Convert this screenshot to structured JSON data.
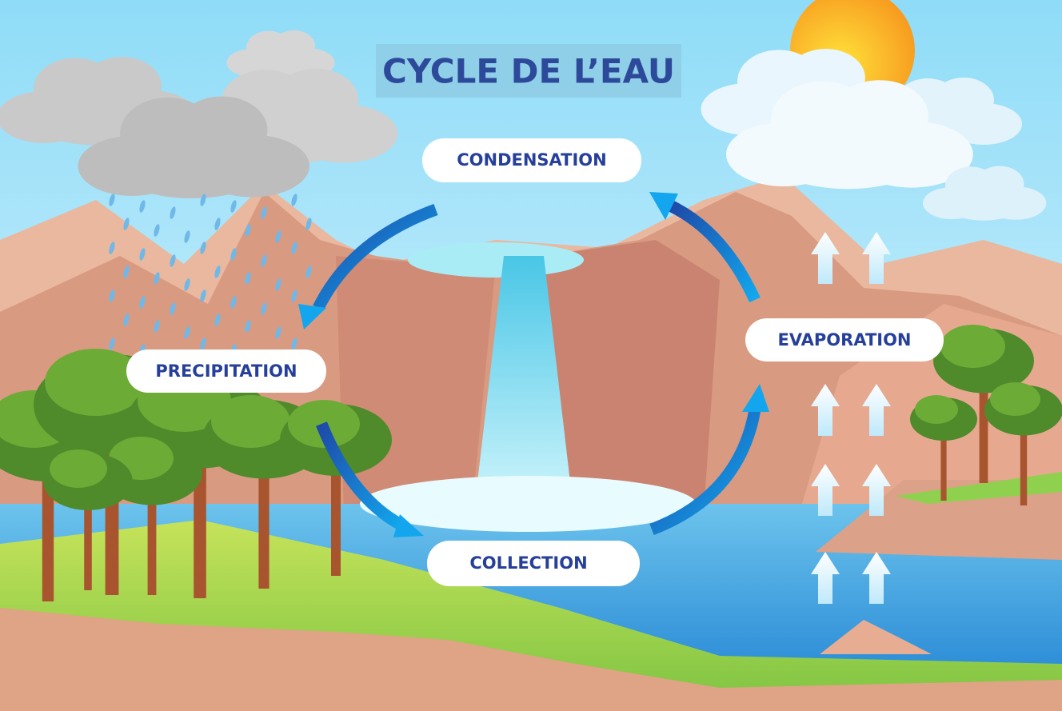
{
  "title": "CYCLE DE L’EAU",
  "stages": [
    {
      "label": "CONDENSATION"
    },
    {
      "label": "PRECIPITATION"
    },
    {
      "label": "COLLECTION"
    },
    {
      "label": "EVAPORATION"
    }
  ]
}
